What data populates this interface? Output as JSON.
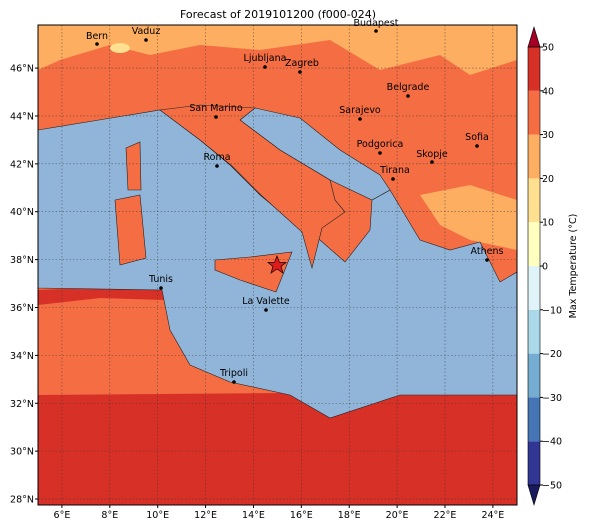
{
  "title": "Forecast of 2019101200 (f000-024)",
  "cities": [
    "Bern",
    "Vaduz",
    "Budapest",
    "Ljubljana",
    "Zagreb",
    "Belgrade",
    "San Marino",
    "Sarajevo",
    "Sofia",
    "Podgorica",
    "Skopje",
    "Roma",
    "Tirana",
    "Athens",
    "Tunis",
    "La Valette",
    "Tripoli"
  ],
  "map": {
    "lon_ticks": [
      {
        "value": 6,
        "label": "6°E"
      },
      {
        "value": 8,
        "label": "8°E"
      },
      {
        "value": 10,
        "label": "10°E"
      },
      {
        "value": 12,
        "label": "12°E"
      },
      {
        "value": 14,
        "label": "14°E"
      },
      {
        "value": 16,
        "label": "16°E"
      },
      {
        "value": 18,
        "label": "18°E"
      },
      {
        "value": 20,
        "label": "20°E"
      },
      {
        "value": 22,
        "label": "22°E"
      },
      {
        "value": 24,
        "label": "24°E"
      }
    ],
    "lat_ticks": [
      {
        "value": 28,
        "label": "28°N"
      },
      {
        "value": 30,
        "label": "30°N"
      },
      {
        "value": 32,
        "label": "32°N"
      },
      {
        "value": 34,
        "label": "34°N"
      },
      {
        "value": 36,
        "label": "36°N"
      },
      {
        "value": 38,
        "label": "38°N"
      },
      {
        "value": 40,
        "label": "40°N"
      },
      {
        "value": 42,
        "label": "42°N"
      },
      {
        "value": 44,
        "label": "44°N"
      },
      {
        "value": 46,
        "label": "46°N"
      }
    ]
  },
  "colorbar": {
    "label": "Max Temperature (°C)",
    "ticks": [
      {
        "value": -50,
        "label": "−50"
      },
      {
        "value": -40,
        "label": "−40"
      },
      {
        "value": -30,
        "label": "−30"
      },
      {
        "value": -20,
        "label": "−20"
      },
      {
        "value": -10,
        "label": "−10"
      },
      0,
      10,
      20,
      30,
      40,
      50
    ],
    "colors": [
      "#313695",
      "#4575b4",
      "#74add1",
      "#abd9e9",
      "#e0f3f8",
      "#ffffbf",
      "#fee090",
      "#fdae61",
      "#f46d43",
      "#d73027"
    ]
  }
}
